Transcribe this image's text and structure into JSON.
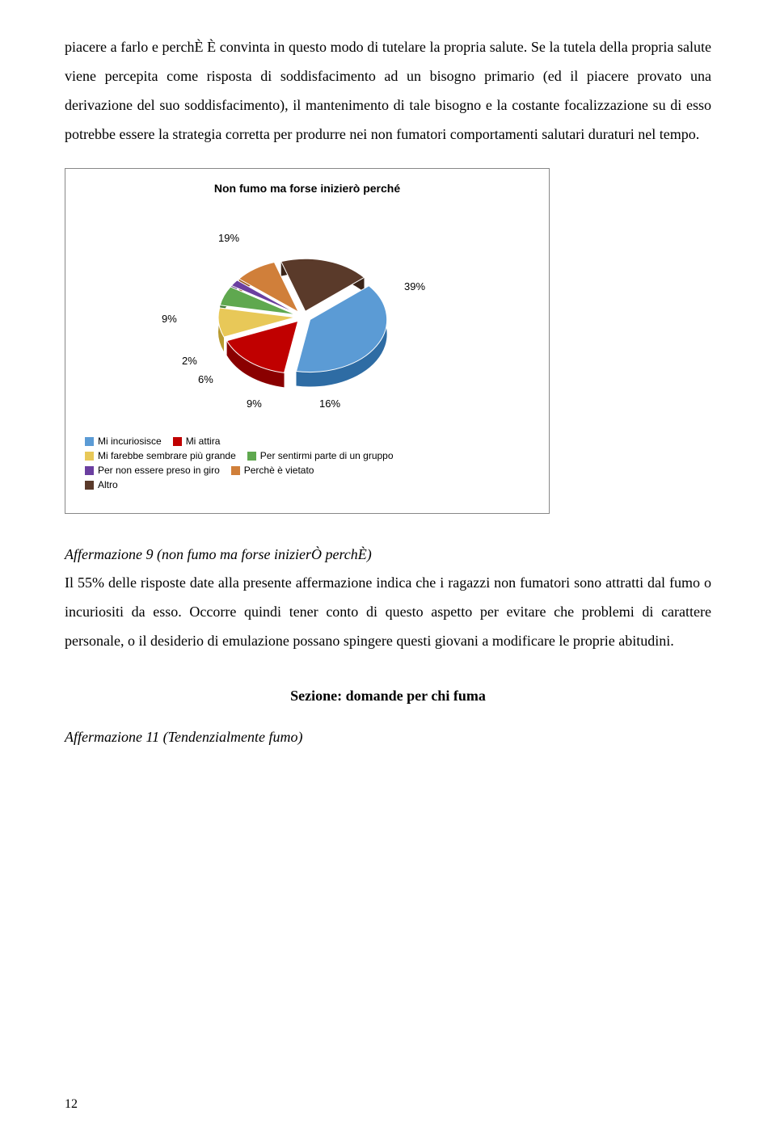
{
  "paragraphs": {
    "p1": "piacere a farlo e perchÈ È convinta in questo modo di tutelare la propria salute. Se la tutela della propria salute viene percepita come risposta di soddisfacimento ad un bisogno primario (ed il piacere provato una derivazione del suo soddisfacimento), il mantenimento di tale bisogno e la costante focalizzazione su di esso potrebbe essere la strategia corretta per produrre nei non fumatori comportamenti salutari duraturi nel tempo.",
    "p2": "Il 55% delle risposte date alla presente affermazione indica che i ragazzi non fumatori sono attratti dal fumo o incuriositi da esso. Occorre quindi tener conto di questo aspetto per evitare che problemi di carattere personale, o il desiderio di emulazione possano spingere questi giovani a modificare le proprie abitudini."
  },
  "chart": {
    "title": "Non fumo ma forse inizierò perché",
    "type": "pie",
    "slices": [
      {
        "label": "Mi incuriosisce",
        "value": 39,
        "color": "#5b9bd5",
        "side": "#2e6ca4"
      },
      {
        "label": "Mi attira",
        "value": 16,
        "color": "#c00000",
        "side": "#8a0000"
      },
      {
        "label": "Mi farebbe sembrare più grande",
        "value": 9,
        "color": "#e8c858",
        "side": "#b89a30"
      },
      {
        "label": "Per sentirmi parte di un gruppo",
        "value": 6,
        "color": "#5fa84f",
        "side": "#3f7a32"
      },
      {
        "label": "Per non essere preso in giro",
        "value": 2,
        "color": "#6b3fa0",
        "side": "#4a2870"
      },
      {
        "label": "Perchè è vietato",
        "value": 9,
        "color": "#d07f3a",
        "side": "#9e5c24"
      },
      {
        "label": "Altro",
        "value": 19,
        "color": "#5a3a2a",
        "side": "#3a2418"
      }
    ],
    "value_labels": {
      "v39": "39%",
      "v16": "16%",
      "v9a": "9%",
      "v6": "6%",
      "v2": "2%",
      "v9b": "9%",
      "v19": "19%"
    },
    "legend": [
      {
        "label": "Mi incuriosisce",
        "color": "#5b9bd5"
      },
      {
        "label": "Mi attira",
        "color": "#c00000"
      },
      {
        "label": "Mi farebbe sembrare più grande",
        "color": "#e8c858"
      },
      {
        "label": "Per sentirmi parte di un gruppo",
        "color": "#5fa84f"
      },
      {
        "label": "Per non essere preso in giro",
        "color": "#6b3fa0"
      },
      {
        "label": "Perchè è vietato",
        "color": "#d07f3a"
      },
      {
        "label": "Altro",
        "color": "#5a3a2a"
      }
    ]
  },
  "headings": {
    "aff9": "Affermazione 9 (non fumo ma forse inizierÒ perchÈ)",
    "section": "Sezione: domande per chi fuma",
    "aff11": "Affermazione 11 (Tendenzialmente fumo)"
  },
  "page_number": "12"
}
